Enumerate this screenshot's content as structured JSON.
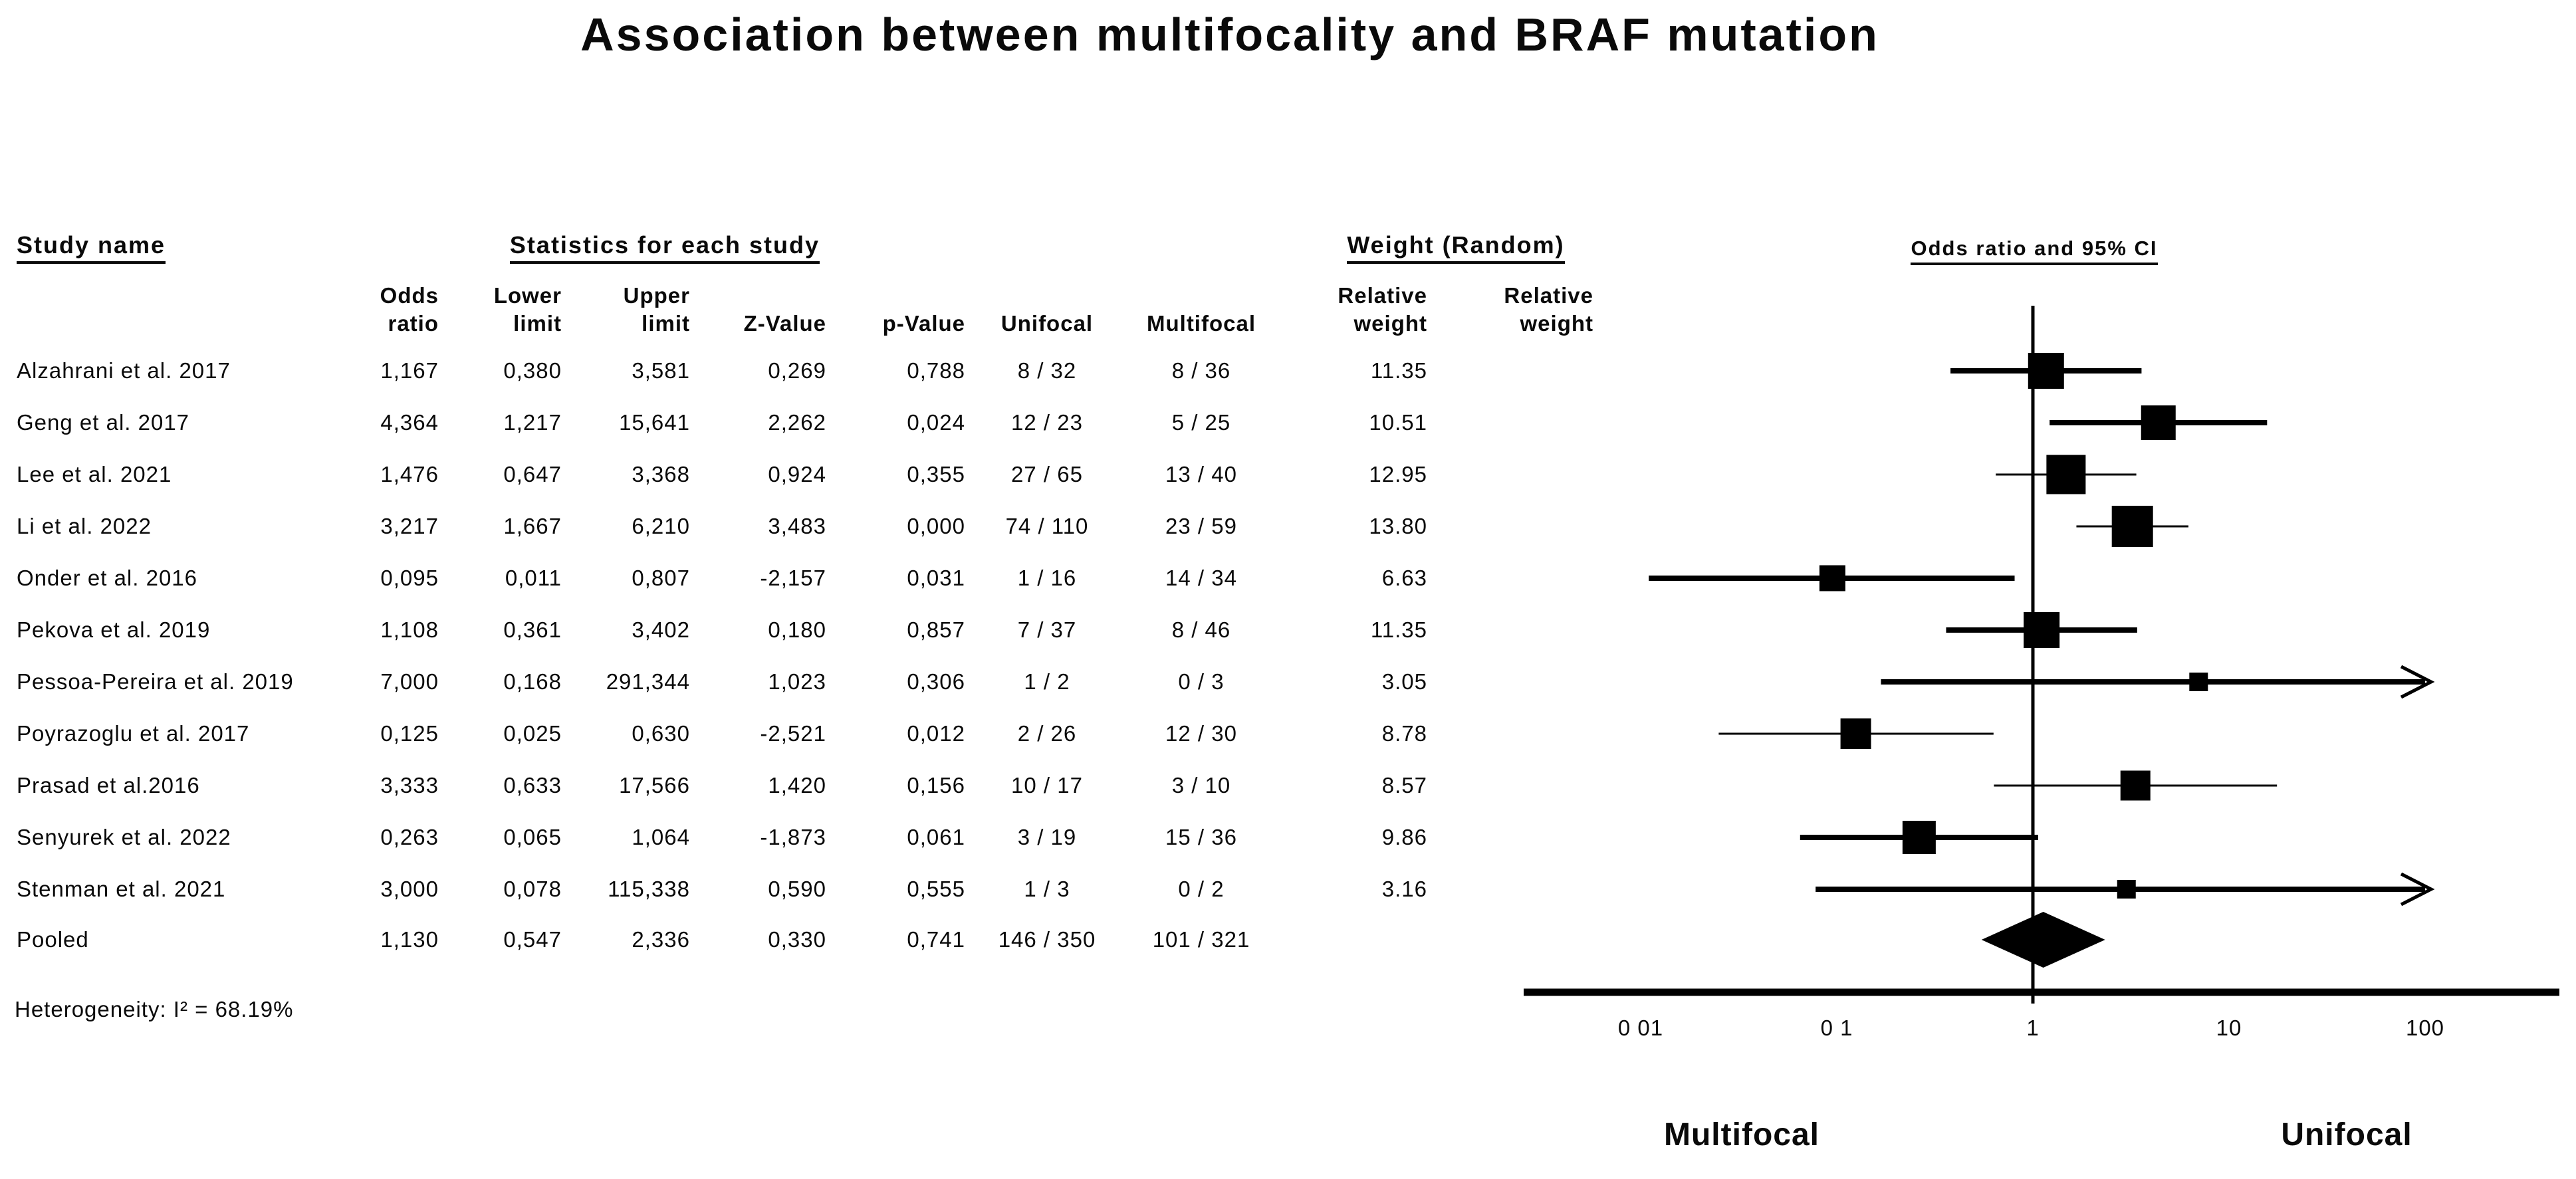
{
  "title": "Association between multifocality and BRAF mutation",
  "headers": {
    "study_name": "Study name",
    "statistics": "Statistics for each study",
    "weight_random": "Weight (Random)",
    "or_ci": "Odds ratio and 95% CI"
  },
  "columns": {
    "odds_ratio": [
      "Odds",
      "ratio"
    ],
    "lower_limit": [
      "Lower",
      "limit"
    ],
    "upper_limit": [
      "Upper",
      "limit"
    ],
    "z_value": [
      "Z-Value"
    ],
    "p_value": [
      "p-Value"
    ],
    "unifocal": [
      "Unifocal"
    ],
    "multifocal": [
      "Multifocal"
    ],
    "relative_weight_1": [
      "Relative",
      "weight"
    ],
    "relative_weight_2": [
      "Relative",
      "weight"
    ]
  },
  "studies": [
    {
      "name": "Alzahrani et al. 2017",
      "odds_ratio": "1,167",
      "lower": "0,380",
      "upper": "3,581",
      "z": "0,269",
      "p": "0,788",
      "unifocal": "8 / 32",
      "multifocal": "8 / 36",
      "weight": "11.35",
      "or_value": 1.167,
      "lower_value": 0.38,
      "upper_value": 3.581,
      "weight_value": 11.35,
      "ci_style": "thick"
    },
    {
      "name": "Geng et al. 2017",
      "odds_ratio": "4,364",
      "lower": "1,217",
      "upper": "15,641",
      "z": "2,262",
      "p": "0,024",
      "unifocal": "12 / 23",
      "multifocal": "5 / 25",
      "weight": "10.51",
      "or_value": 4.364,
      "lower_value": 1.217,
      "upper_value": 15.641,
      "weight_value": 10.51,
      "ci_style": "thick"
    },
    {
      "name": "Lee et al. 2021",
      "odds_ratio": "1,476",
      "lower": "0,647",
      "upper": "3,368",
      "z": "0,924",
      "p": "0,355",
      "unifocal": "27 / 65",
      "multifocal": "13 / 40",
      "weight": "12.95",
      "or_value": 1.476,
      "lower_value": 0.647,
      "upper_value": 3.368,
      "weight_value": 12.95,
      "ci_style": "thin"
    },
    {
      "name": "Li et al. 2022",
      "odds_ratio": "3,217",
      "lower": "1,667",
      "upper": "6,210",
      "z": "3,483",
      "p": "0,000",
      "unifocal": "74 / 110",
      "multifocal": "23 / 59",
      "weight": "13.80",
      "or_value": 3.217,
      "lower_value": 1.667,
      "upper_value": 6.21,
      "weight_value": 13.8,
      "ci_style": "thin"
    },
    {
      "name": "Onder et al. 2016",
      "odds_ratio": "0,095",
      "lower": "0,011",
      "upper": "0,807",
      "z": "-2,157",
      "p": "0,031",
      "unifocal": "1 / 16",
      "multifocal": "14 / 34",
      "weight": "6.63",
      "or_value": 0.095,
      "lower_value": 0.011,
      "upper_value": 0.807,
      "weight_value": 6.63,
      "ci_style": "thick"
    },
    {
      "name": "Pekova et al. 2019",
      "odds_ratio": "1,108",
      "lower": "0,361",
      "upper": "3,402",
      "z": "0,180",
      "p": "0,857",
      "unifocal": "7 / 37",
      "multifocal": "8 / 46",
      "weight": "11.35",
      "or_value": 1.108,
      "lower_value": 0.361,
      "upper_value": 3.402,
      "weight_value": 11.35,
      "ci_style": "thick"
    },
    {
      "name": "Pessoa-Pereira et al. 2019",
      "odds_ratio": "7,000",
      "lower": "0,168",
      "upper": "291,344",
      "z": "1,023",
      "p": "0,306",
      "unifocal": "1 / 2",
      "multifocal": "0 / 3",
      "weight": "3.05",
      "or_value": 7.0,
      "lower_value": 0.168,
      "upper_value": 291.344,
      "weight_value": 3.05,
      "ci_style": "thick"
    },
    {
      "name": "Poyrazoglu et al. 2017",
      "odds_ratio": "0,125",
      "lower": "0,025",
      "upper": "0,630",
      "z": "-2,521",
      "p": "0,012",
      "unifocal": "2 / 26",
      "multifocal": "12 / 30",
      "weight": "8.78",
      "or_value": 0.125,
      "lower_value": 0.025,
      "upper_value": 0.63,
      "weight_value": 8.78,
      "ci_style": "thin"
    },
    {
      "name": "Prasad et al.2016",
      "odds_ratio": "3,333",
      "lower": "0,633",
      "upper": "17,566",
      "z": "1,420",
      "p": "0,156",
      "unifocal": "10 / 17",
      "multifocal": "3 / 10",
      "weight": "8.57",
      "or_value": 3.333,
      "lower_value": 0.633,
      "upper_value": 17.566,
      "weight_value": 8.57,
      "ci_style": "thin"
    },
    {
      "name": "Senyurek et al. 2022",
      "odds_ratio": "0,263",
      "lower": "0,065",
      "upper": "1,064",
      "z": "-1,873",
      "p": "0,061",
      "unifocal": "3 / 19",
      "multifocal": "15 / 36",
      "weight": "9.86",
      "or_value": 0.263,
      "lower_value": 0.065,
      "upper_value": 1.064,
      "weight_value": 9.86,
      "ci_style": "thick"
    },
    {
      "name": "Stenman et al. 2021",
      "odds_ratio": "3,000",
      "lower": "0,078",
      "upper": "115,338",
      "z": "0,590",
      "p": "0,555",
      "unifocal": "1 / 3",
      "multifocal": "0 / 2",
      "weight": "3.16",
      "or_value": 3.0,
      "lower_value": 0.078,
      "upper_value": 115.338,
      "weight_value": 3.16,
      "ci_style": "thick"
    }
  ],
  "pooled": {
    "name": "Pooled",
    "odds_ratio": "1,130",
    "lower": "0,547",
    "upper": "2,336",
    "z": "0,330",
    "p": "0,741",
    "unifocal": "146 / 350",
    "multifocal": "101 / 321",
    "weight": "",
    "or_value": 1.13,
    "lower_value": 0.547,
    "upper_value": 2.336
  },
  "heterogeneity": "Heterogeneity: I² = 68.19%",
  "axis": {
    "tick_labels": [
      "0 01",
      "0 1",
      "1",
      "10",
      "100"
    ],
    "tick_values": [
      0.01,
      0.1,
      1,
      10,
      100
    ]
  },
  "footer": {
    "left_label": "Multifocal",
    "right_label": "Unifocal"
  },
  "chart_data": {
    "type": "scatter",
    "subtype": "forest-plot",
    "title": "Association between multifocality and BRAF mutation",
    "x_axis": {
      "scale": "log",
      "ticks": [
        0.01,
        0.1,
        1,
        10,
        100
      ],
      "range": [
        0.01,
        100
      ],
      "label_left_of_1": "Multifocal",
      "label_right_of_1": "Unifocal",
      "reference_line": 1
    },
    "effect_measure": "Odds ratio and 95% CI",
    "model": "Random",
    "heterogeneity_I2_pct": 68.19,
    "points": [
      {
        "study": "Alzahrani et al. 2017",
        "or": 1.167,
        "ci": [
          0.38,
          3.581
        ],
        "z": 0.269,
        "p": 0.788,
        "unifocal": "8/32",
        "multifocal": "8/36",
        "weight_pct": 11.35
      },
      {
        "study": "Geng et al. 2017",
        "or": 4.364,
        "ci": [
          1.217,
          15.641
        ],
        "z": 2.262,
        "p": 0.024,
        "unifocal": "12/23",
        "multifocal": "5/25",
        "weight_pct": 10.51
      },
      {
        "study": "Lee et al. 2021",
        "or": 1.476,
        "ci": [
          0.647,
          3.368
        ],
        "z": 0.924,
        "p": 0.355,
        "unifocal": "27/65",
        "multifocal": "13/40",
        "weight_pct": 12.95
      },
      {
        "study": "Li et al. 2022",
        "or": 3.217,
        "ci": [
          1.667,
          6.21
        ],
        "z": 3.483,
        "p": 0.0,
        "unifocal": "74/110",
        "multifocal": "23/59",
        "weight_pct": 13.8
      },
      {
        "study": "Onder et al. 2016",
        "or": 0.095,
        "ci": [
          0.011,
          0.807
        ],
        "z": -2.157,
        "p": 0.031,
        "unifocal": "1/16",
        "multifocal": "14/34",
        "weight_pct": 6.63
      },
      {
        "study": "Pekova et al. 2019",
        "or": 1.108,
        "ci": [
          0.361,
          3.402
        ],
        "z": 0.18,
        "p": 0.857,
        "unifocal": "7/37",
        "multifocal": "8/46",
        "weight_pct": 11.35
      },
      {
        "study": "Pessoa-Pereira et al. 2019",
        "or": 7.0,
        "ci": [
          0.168,
          291.344
        ],
        "z": 1.023,
        "p": 0.306,
        "unifocal": "1/2",
        "multifocal": "0/3",
        "weight_pct": 3.05
      },
      {
        "study": "Poyrazoglu et al. 2017",
        "or": 0.125,
        "ci": [
          0.025,
          0.63
        ],
        "z": -2.521,
        "p": 0.012,
        "unifocal": "2/26",
        "multifocal": "12/30",
        "weight_pct": 8.78
      },
      {
        "study": "Prasad et al.2016",
        "or": 3.333,
        "ci": [
          0.633,
          17.566
        ],
        "z": 1.42,
        "p": 0.156,
        "unifocal": "10/17",
        "multifocal": "3/10",
        "weight_pct": 8.57
      },
      {
        "study": "Senyurek et al. 2022",
        "or": 0.263,
        "ci": [
          0.065,
          1.064
        ],
        "z": -1.873,
        "p": 0.061,
        "unifocal": "3/19",
        "multifocal": "15/36",
        "weight_pct": 9.86
      },
      {
        "study": "Stenman et al. 2021",
        "or": 3.0,
        "ci": [
          0.078,
          115.338
        ],
        "z": 0.59,
        "p": 0.555,
        "unifocal": "1/3",
        "multifocal": "0/2",
        "weight_pct": 3.16
      }
    ],
    "pooled": {
      "or": 1.13,
      "ci": [
        0.547,
        2.336
      ],
      "z": 0.33,
      "p": 0.741,
      "unifocal": "146/350",
      "multifocal": "101/321",
      "marker": "diamond"
    }
  }
}
